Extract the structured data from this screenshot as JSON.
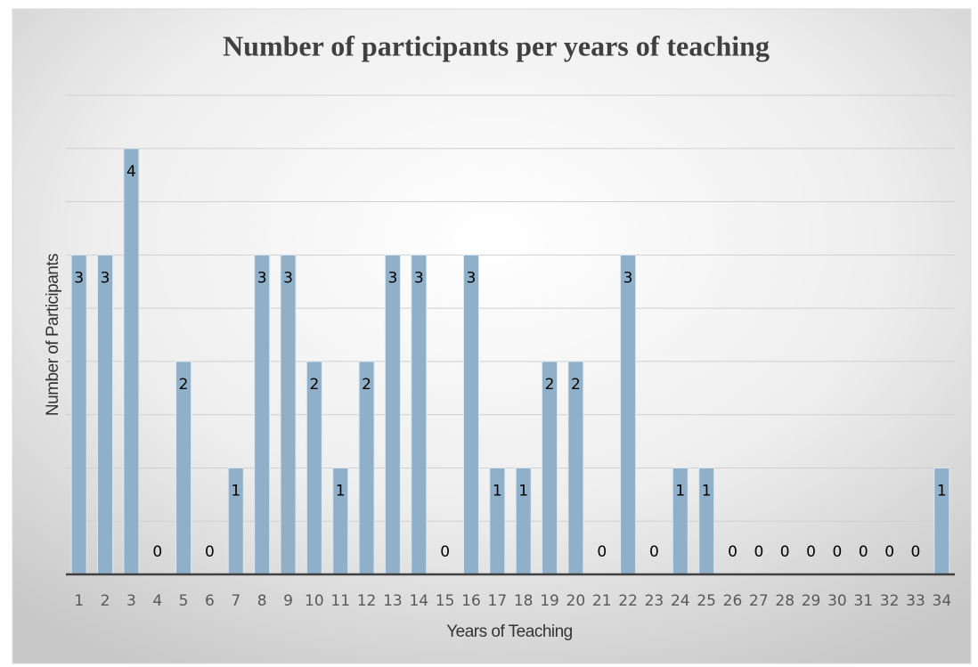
{
  "chart_data": {
    "type": "bar",
    "title": "Number of participants per years of teaching",
    "x_label": "Years of Teaching",
    "y_label": "Number of Participants",
    "categories": [
      "1",
      "2",
      "3",
      "4",
      "5",
      "6",
      "7",
      "8",
      "9",
      "10",
      "11",
      "12",
      "13",
      "14",
      "15",
      "16",
      "17",
      "18",
      "19",
      "20",
      "21",
      "22",
      "23",
      "24",
      "25",
      "26",
      "27",
      "28",
      "29",
      "30",
      "31",
      "32",
      "33",
      "34"
    ],
    "values": [
      3,
      3,
      4,
      0,
      2,
      0,
      1,
      3,
      3,
      2,
      1,
      2,
      3,
      3,
      0,
      3,
      1,
      1,
      2,
      2,
      0,
      3,
      0,
      1,
      1,
      0,
      0,
      0,
      0,
      0,
      0,
      0,
      0,
      1
    ],
    "color": "#8fb0c8",
    "ylim": [
      0,
      4.5
    ],
    "yticks": [
      0,
      0.5,
      1,
      1.5,
      2,
      2.5,
      3,
      3.5,
      4,
      4.5
    ],
    "ytick_labels": false,
    "grid": true,
    "data_labels": true
  }
}
